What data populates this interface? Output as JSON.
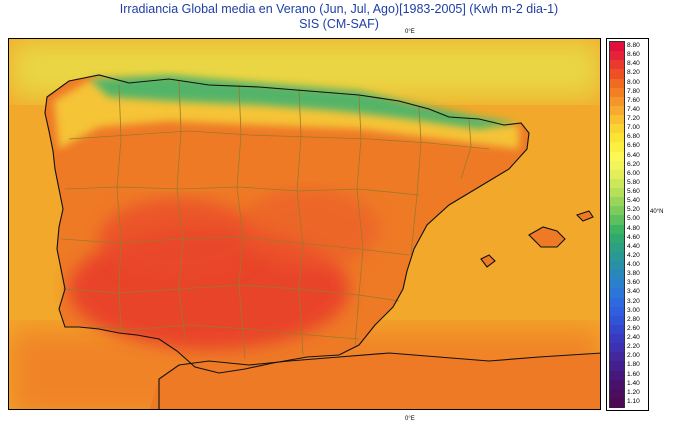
{
  "title": "Irradiancia Global media en Verano (Jun, Jul, Ago)[1983-2005] (Kwh m-2 dia-1)",
  "subtitle": "SIS (CM-SAF)",
  "axis_labels": {
    "top_lon": "0°E",
    "bottom_lon": "0°E",
    "right_lat": "40°N"
  },
  "legend": {
    "values": [
      "8.80",
      "8.60",
      "8.40",
      "8.20",
      "8.00",
      "7.80",
      "7.60",
      "7.40",
      "7.20",
      "7.00",
      "6.80",
      "6.60",
      "6.40",
      "6.20",
      "6.00",
      "5.80",
      "5.60",
      "5.40",
      "5.20",
      "5.00",
      "4.80",
      "4.60",
      "4.40",
      "4.20",
      "4.00",
      "3.80",
      "3.60",
      "3.40",
      "3.20",
      "3.00",
      "2.80",
      "2.60",
      "2.40",
      "2.20",
      "2.00",
      "1.80",
      "1.60",
      "1.40",
      "1.20",
      "1.10"
    ],
    "colors": [
      "#e0103a",
      "#e5223a",
      "#ea3a2e",
      "#ee5026",
      "#f06a22",
      "#f28022",
      "#f4962a",
      "#f6aa30",
      "#f8c030",
      "#fad432",
      "#fbe436",
      "#fbf040",
      "#fcf856",
      "#f2f45a",
      "#e2ee5a",
      "#cce85a",
      "#b4e05a",
      "#98d65a",
      "#7ccc5c",
      "#5cc05e",
      "#3cb464",
      "#2eaa6e",
      "#2ca080",
      "#2a9894",
      "#2890a8",
      "#2888bc",
      "#2a80cc",
      "#2c76d8",
      "#2e6ade",
      "#305ede",
      "#3252d8",
      "#3446cc",
      "#3a3ac0",
      "#3e30b0",
      "#42289e",
      "#44208e",
      "#46187c",
      "#48126c",
      "#4a0e5e",
      "#4c0a52"
    ]
  },
  "map": {
    "ocean_color": "#f2a82a",
    "land_base_color": "#ee7a26",
    "interior_high_color": "#e8462c",
    "north_coast_color": "#58b870",
    "cantabric_sea_color": "#d8e45a",
    "border_color": "#9a7a2a",
    "coast_color": "#111111"
  }
}
